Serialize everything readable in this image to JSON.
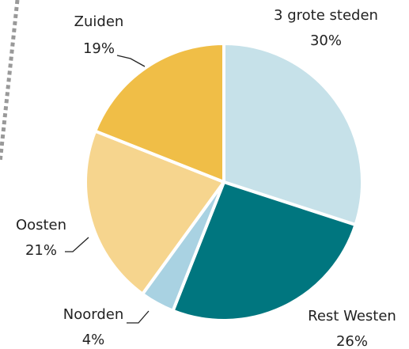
{
  "chart_data": {
    "type": "pie",
    "categories": [
      "3 grote steden",
      "Rest Westen",
      "Noorden",
      "Oosten",
      "Zuiden"
    ],
    "values": [
      30,
      26,
      4,
      21,
      19
    ],
    "value_labels": [
      "30%",
      "26%",
      "4%",
      "21%",
      "19%"
    ],
    "colors": [
      "#c6e1e9",
      "#00767f",
      "#a9d2e2",
      "#f6d58e",
      "#f0be47"
    ]
  }
}
